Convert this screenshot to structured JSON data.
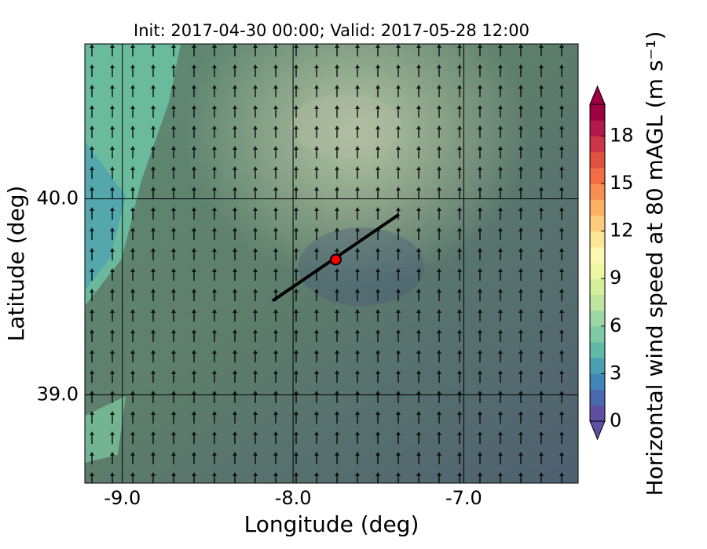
{
  "chart_data": {
    "type": "map",
    "title": "Init: 2017-04-30 00:00; Valid: 2017-05-28 12:00",
    "x_label": "Longitude (deg)",
    "y_label": "Latitude (deg)",
    "xlim": [
      -9.22,
      -6.33
    ],
    "ylim": [
      38.55,
      40.79
    ],
    "xticks": [
      {
        "value": -9,
        "label": "-9.0"
      },
      {
        "value": -8,
        "label": "-8.0"
      },
      {
        "value": -7,
        "label": "-7.0"
      }
    ],
    "yticks": [
      {
        "value": 39,
        "label": "39.0"
      },
      {
        "value": 40,
        "label": "40.0"
      }
    ],
    "grid": true,
    "transect": {
      "x": [
        -8.12,
        -7.38
      ],
      "y": [
        39.48,
        39.92
      ],
      "color": "#000000"
    },
    "site": {
      "x": -7.75,
      "y": 39.69,
      "color": "#ff0000"
    },
    "colorbar": {
      "label": "Horizontal wind speed at 80 mAGL (m s⁻¹)",
      "clim": [
        0,
        20
      ],
      "ticks": [
        0,
        3,
        6,
        9,
        12,
        15,
        18
      ],
      "colors": [
        "#5e4fa2",
        "#4a68ad",
        "#3f85b7",
        "#4aa0b3",
        "#5fbaa8",
        "#7ccba4",
        "#9dd8a4",
        "#bee5a0",
        "#d7ef9b",
        "#ecf7a2",
        "#fbf8b0",
        "#fee593",
        "#fdcb7a",
        "#fdaf62",
        "#f98e52",
        "#f26c44",
        "#e1513f",
        "#cc3447",
        "#b3184b",
        "#9e0142"
      ]
    }
  }
}
